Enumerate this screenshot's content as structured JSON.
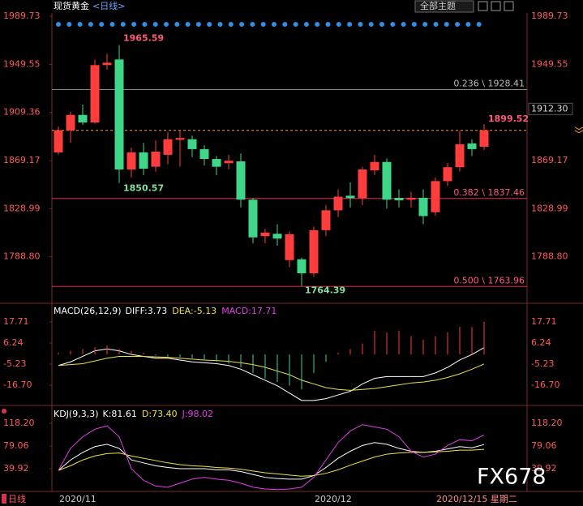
{
  "header": {
    "symbol": "现货黄金",
    "period": "<日线>",
    "theme_button": "全部主题"
  },
  "footer": {
    "period": "日线",
    "date": "2020/12/15 星期二",
    "watermark": "FX678"
  },
  "chart_data": [
    {
      "type": "candlestick",
      "categories": [
        null,
        "2020/11",
        null,
        null,
        null,
        null,
        null,
        null,
        null,
        null,
        null,
        null,
        null,
        null,
        null,
        null,
        null,
        null,
        null,
        null,
        null,
        null,
        "2020/12",
        null,
        null,
        null,
        null,
        null,
        null,
        null,
        null,
        null,
        null,
        null,
        null,
        null
      ],
      "open": [
        1876,
        1894.4,
        1907.3,
        1901,
        1948.9,
        1953.6,
        1861.7,
        1876,
        1864,
        1874,
        1886.5,
        1887,
        1878.7,
        1870.5,
        1867,
        1868.5,
        1836.5,
        1806,
        1808,
        1786,
        1786.7,
        1775,
        1811,
        1827.6,
        1839.8,
        1837.8,
        1861,
        1868,
        1838,
        1836.5,
        1838,
        1826,
        1852,
        1863.6,
        1883.5,
        1880.7
      ],
      "high": [
        1897.7,
        1910,
        1916,
        1953.6,
        1958.4,
        1965.59,
        1880,
        1884,
        1886,
        1893,
        1895,
        1890,
        1882,
        1873,
        1874,
        1875,
        1838,
        1812,
        1816,
        1810,
        1788,
        1814,
        1832,
        1845,
        1851,
        1864,
        1874,
        1871,
        1845,
        1843,
        1845,
        1855,
        1867,
        1894,
        1887,
        1899.52
      ],
      "low": [
        1874,
        1884,
        1899,
        1899.8,
        1945,
        1850.57,
        1855,
        1857,
        1860,
        1866,
        1864,
        1872,
        1865,
        1857,
        1862,
        1830,
        1800,
        1800,
        1798,
        1780,
        1764.39,
        1772,
        1806,
        1822,
        1830,
        1832,
        1857,
        1829,
        1830,
        1830,
        1816,
        1823,
        1848,
        1860,
        1873,
        1878
      ],
      "close": [
        1894.4,
        1907.3,
        1901,
        1948.9,
        1950.9,
        1861.7,
        1876,
        1862.4,
        1876.6,
        1887,
        1888,
        1878.7,
        1870.5,
        1864,
        1869,
        1836.5,
        1805,
        1809,
        1804,
        1807.6,
        1775,
        1811,
        1827.6,
        1839,
        1837.8,
        1861.7,
        1868,
        1836.5,
        1836,
        1838,
        1822.8,
        1852,
        1863.6,
        1882.8,
        1878.7,
        1894.4
      ],
      "up_color": "#ff3d3d",
      "down_color": "#3fd68a",
      "ylim": [
        1751.3,
        1993.8
      ],
      "yticks": [
        1989.73,
        1949.55,
        1909.36,
        1869.17,
        1828.99,
        {
          "value": 1788.8,
          "label": "1788.80"
        }
      ],
      "levels": [
        {
          "value": 1928.41,
          "label": "0.236 \\ 1928.41",
          "color": "#8a8a8a"
        },
        {
          "value": 1837.46,
          "label": "0.382 \\ 1837.46",
          "color": "#d8334a"
        },
        {
          "value": 1763.96,
          "label": "0.500 \\ 1763.96",
          "color": "#d8334a"
        }
      ],
      "marker": {
        "value": 1912.3,
        "label": "1912.30"
      }
    },
    {
      "type": "macd",
      "title": "MACD(26,12,9)",
      "up_color": "#ff3d3d",
      "down_color": "#3fd68a",
      "ylim": [
        -28.6,
        21.7
      ],
      "yticks": [
        17.71,
        6.24,
        -5.23,
        {
          "value": -16.7,
          "label": "-16.70"
        }
      ],
      "series": [
        {
          "name": "DIFF:3.73",
          "color": "#ffffff",
          "values": [
            -6,
            -4,
            -1,
            2,
            3,
            2,
            0,
            -1,
            -2,
            -2,
            -3,
            -4,
            -4.5,
            -5,
            -6,
            -8,
            -11,
            -14,
            -17,
            -21,
            -25,
            -25,
            -24,
            -22,
            -20,
            -16,
            -13,
            -12,
            -12,
            -12,
            -12,
            -10,
            -7,
            -3,
            0,
            3.73
          ]
        },
        {
          "name": "DEA:-5.13",
          "color": "#f0e04a",
          "values": [
            -6,
            -5.5,
            -5,
            -3.5,
            -2,
            -1,
            -1,
            -1,
            -1.3,
            -1.5,
            -2,
            -2.5,
            -3,
            -3.3,
            -3.7,
            -4.5,
            -5.5,
            -7,
            -9,
            -11,
            -14,
            -16,
            -18,
            -19,
            -19.5,
            -19,
            -18.5,
            -17.5,
            -16.5,
            -15.5,
            -15,
            -14,
            -12.5,
            -10.5,
            -8,
            -5.13
          ]
        },
        {
          "name": "MACD:17.71",
          "color": "#e040e8",
          "type": "bar",
          "values": [
            1,
            2,
            3,
            4,
            5,
            3,
            2,
            1,
            -0.5,
            -1,
            -1.5,
            -2,
            -3,
            -4,
            -5,
            -7,
            -10,
            -13,
            -15,
            -17,
            -19,
            -10,
            -4,
            1,
            3,
            6,
            13,
            12,
            13,
            10,
            8,
            10,
            12,
            15,
            15,
            17.71
          ]
        }
      ]
    },
    {
      "type": "kdj",
      "title": "KDJ(9,3,3)",
      "ylim": [
        0.8,
        137.8
      ],
      "yticks": [
        {
          "value": 118.2,
          "label": "118.20"
        },
        79.06,
        39.92
      ],
      "series": [
        {
          "name": "K:81.61",
          "color": "#ffffff",
          "values": [
            37,
            55,
            68,
            78,
            82,
            75,
            55,
            50,
            45,
            42,
            40,
            40,
            40,
            38,
            38,
            35,
            30,
            25,
            23,
            22,
            22,
            28,
            42,
            58,
            70,
            80,
            85,
            82,
            75,
            70,
            68,
            70,
            74,
            78,
            76,
            81.61
          ]
        },
        {
          "name": "D:73.40",
          "color": "#f0e04a",
          "values": [
            37,
            45,
            55,
            62,
            66,
            67,
            62,
            58,
            54,
            50,
            47,
            45,
            44,
            42,
            41,
            39,
            36,
            33,
            31,
            29,
            27,
            28,
            32,
            38,
            46,
            53,
            60,
            65,
            67,
            68,
            68,
            69,
            70,
            72,
            72,
            73.4
          ]
        },
        {
          "name": "J:98.02",
          "color": "#e040e8",
          "values": [
            37,
            75,
            95,
            108,
            114,
            95,
            40,
            20,
            10,
            8,
            15,
            22,
            25,
            22,
            20,
            15,
            8,
            5,
            4,
            5,
            8,
            25,
            55,
            85,
            105,
            116,
            112,
            108,
            95,
            70,
            60,
            65,
            80,
            90,
            88,
            98.02
          ]
        }
      ]
    }
  ]
}
